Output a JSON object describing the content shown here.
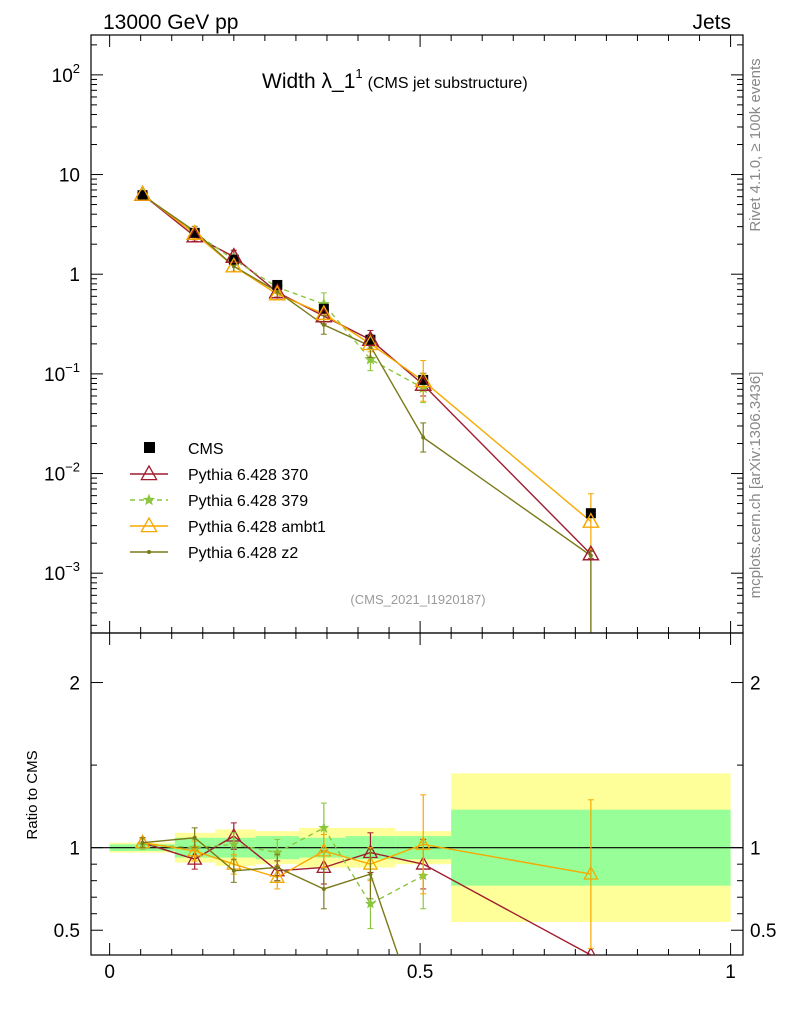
{
  "header": {
    "left": "13000 GeV pp",
    "right": "Jets"
  },
  "title": {
    "main": "Width λ_1",
    "sup": "1",
    "sub": "(CMS jet substructure)"
  },
  "side": {
    "rivet": "Rivet 4.1.0, ≥ 100k events",
    "mcplots": "mcplots.cern.ch [arXiv:1306.3436]"
  },
  "watermark": "(CMS_2021_I1920187)",
  "ratio_ylabel": "Ratio to CMS",
  "colors": {
    "p370": "#a01c2e",
    "p379": "#8cc63f",
    "ambt1": "#f5a800",
    "z2": "#7a7a1a",
    "band_stat": "#98ff98",
    "band_total": "#ffff99"
  },
  "chart_data": {
    "type": "line",
    "xlim": [
      -0.03,
      1.02
    ],
    "main_ylim_log": [
      -3.6,
      2.4
    ],
    "ratio_ylim": [
      0.35,
      2.3
    ],
    "x_ticks": [
      "0",
      "0.5",
      "1"
    ],
    "x_tick_values": [
      0,
      0.5,
      1
    ],
    "main_y_ticks": [
      {
        "base": "10",
        "exp": "2",
        "v": 100
      },
      {
        "base": "10",
        "exp": "",
        "v": 10
      },
      {
        "base": "1",
        "exp": "",
        "v": 1
      },
      {
        "base": "10",
        "exp": "−1",
        "v": 0.1
      },
      {
        "base": "10",
        "exp": "−2",
        "v": 0.01
      },
      {
        "base": "10",
        "exp": "−3",
        "v": 0.001
      }
    ],
    "ratio_y_ticks": [
      "2",
      "1",
      "0.5"
    ],
    "ratio_y_tick_values": [
      2,
      1,
      0.5
    ],
    "x": [
      0.053,
      0.137,
      0.2,
      0.27,
      0.345,
      0.42,
      0.505,
      0.775
    ],
    "bin_edges": [
      0.0,
      0.105,
      0.17,
      0.235,
      0.305,
      0.38,
      0.46,
      0.55,
      1.0
    ],
    "cms": {
      "name": "CMS",
      "values": [
        6.2,
        2.6,
        1.4,
        0.78,
        0.45,
        0.22,
        0.087,
        0.004
      ],
      "stat_band": [
        0.02,
        0.06,
        0.06,
        0.07,
        0.06,
        0.07,
        0.07,
        0.23
      ],
      "total_band": [
        0.03,
        0.09,
        0.11,
        0.1,
        0.12,
        0.12,
        0.1,
        0.45
      ]
    },
    "series": [
      {
        "name": "Pythia 6.428 370",
        "color": "#a01c2e",
        "dash": "",
        "marker": "triangle-open",
        "values": [
          6.3,
          2.4,
          1.5,
          0.66,
          0.38,
          0.22,
          0.078,
          0.00155
        ],
        "ratio": [
          1.03,
          0.93,
          1.07,
          0.86,
          0.88,
          0.97,
          0.9,
          0.35
        ],
        "ratio_err": [
          0.03,
          0.06,
          0.08,
          0.06,
          0.1,
          0.12,
          0.15,
          0.0
        ]
      },
      {
        "name": "Pythia 6.428 379",
        "color": "#8cc63f",
        "dash": "5,4",
        "marker": "star",
        "values": [
          6.3,
          2.6,
          1.4,
          0.74,
          0.5,
          0.14,
          0.072,
          0.0
        ],
        "ratio": [
          1.02,
          1.0,
          1.02,
          0.97,
          1.12,
          0.66,
          0.83,
          0.0
        ],
        "ratio_err": [
          0.03,
          0.05,
          0.07,
          0.08,
          0.15,
          0.15,
          0.2,
          0.0
        ]
      },
      {
        "name": "Pythia 6.428 ambt1",
        "color": "#f5a800",
        "dash": "",
        "marker": "triangle-open",
        "values": [
          6.3,
          2.55,
          1.2,
          0.63,
          0.4,
          0.2,
          0.085,
          0.0033
        ],
        "ratio": [
          1.03,
          0.98,
          0.9,
          0.82,
          0.98,
          0.9,
          1.02,
          0.84
        ],
        "ratio_err": [
          0.03,
          0.06,
          0.06,
          0.07,
          0.1,
          0.1,
          0.3,
          0.45
        ]
      },
      {
        "name": "Pythia 6.428 z2",
        "color": "#7a7a1a",
        "dash": "",
        "marker": "dot",
        "values": [
          6.2,
          2.7,
          1.2,
          0.67,
          0.31,
          0.19,
          0.023,
          0.0015
        ],
        "ratio": [
          1.03,
          1.06,
          0.86,
          0.88,
          0.75,
          0.84,
          0.2,
          0.0
        ],
        "ratio_err": [
          0.03,
          0.06,
          0.07,
          0.08,
          0.12,
          0.15,
          0.2,
          0.0
        ]
      }
    ]
  }
}
